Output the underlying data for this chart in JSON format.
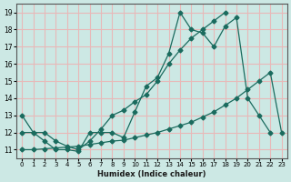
{
  "title": "",
  "xlabel": "Humidex (Indice chaleur)",
  "bg_color": "#cce8e4",
  "grid_color": "#e8b8b8",
  "line_color": "#1a6b5e",
  "xlim": [
    -0.5,
    23.5
  ],
  "ylim": [
    10.5,
    19.5
  ],
  "xticks": [
    0,
    1,
    2,
    3,
    4,
    5,
    6,
    7,
    8,
    9,
    10,
    11,
    12,
    13,
    14,
    15,
    16,
    17,
    18,
    19,
    20,
    21,
    22,
    23
  ],
  "yticks": [
    11,
    12,
    13,
    14,
    15,
    16,
    17,
    18,
    19
  ],
  "line1_x": [
    0,
    1,
    2,
    3,
    4,
    5,
    6,
    7,
    8,
    9,
    10,
    11,
    12,
    13,
    14,
    15,
    16,
    17,
    18,
    19,
    20,
    21,
    22
  ],
  "line1_y": [
    13.0,
    12.0,
    11.5,
    11.0,
    11.0,
    10.9,
    12.0,
    12.0,
    12.0,
    11.7,
    13.2,
    14.7,
    15.2,
    16.6,
    19.0,
    18.0,
    17.8,
    17.0,
    18.2,
    18.7,
    14.0,
    13.0,
    12.0
  ],
  "line2_x": [
    0,
    1,
    2,
    3,
    4,
    5,
    6,
    7,
    8,
    9,
    10,
    11,
    12,
    13,
    14,
    15,
    16,
    17,
    18,
    19,
    20,
    21,
    22
  ],
  "line2_y": [
    12.0,
    12.0,
    12.0,
    11.5,
    11.2,
    11.0,
    11.5,
    12.2,
    13.0,
    13.3,
    13.8,
    14.2,
    15.0,
    16.0,
    16.8,
    17.5,
    18.0,
    18.5,
    19.0,
    null,
    null,
    null,
    null
  ],
  "line3_x": [
    0,
    1,
    2,
    3,
    4,
    5,
    6,
    7,
    8,
    9,
    10,
    11,
    12,
    13,
    14,
    15,
    16,
    17,
    18,
    19,
    20,
    21,
    22,
    23
  ],
  "line3_y": [
    11.0,
    11.0,
    11.05,
    11.1,
    11.15,
    11.2,
    11.3,
    11.4,
    11.5,
    11.55,
    11.7,
    11.85,
    12.0,
    12.2,
    12.4,
    12.6,
    12.9,
    13.2,
    13.6,
    14.0,
    14.5,
    15.0,
    15.5,
    12.0
  ]
}
